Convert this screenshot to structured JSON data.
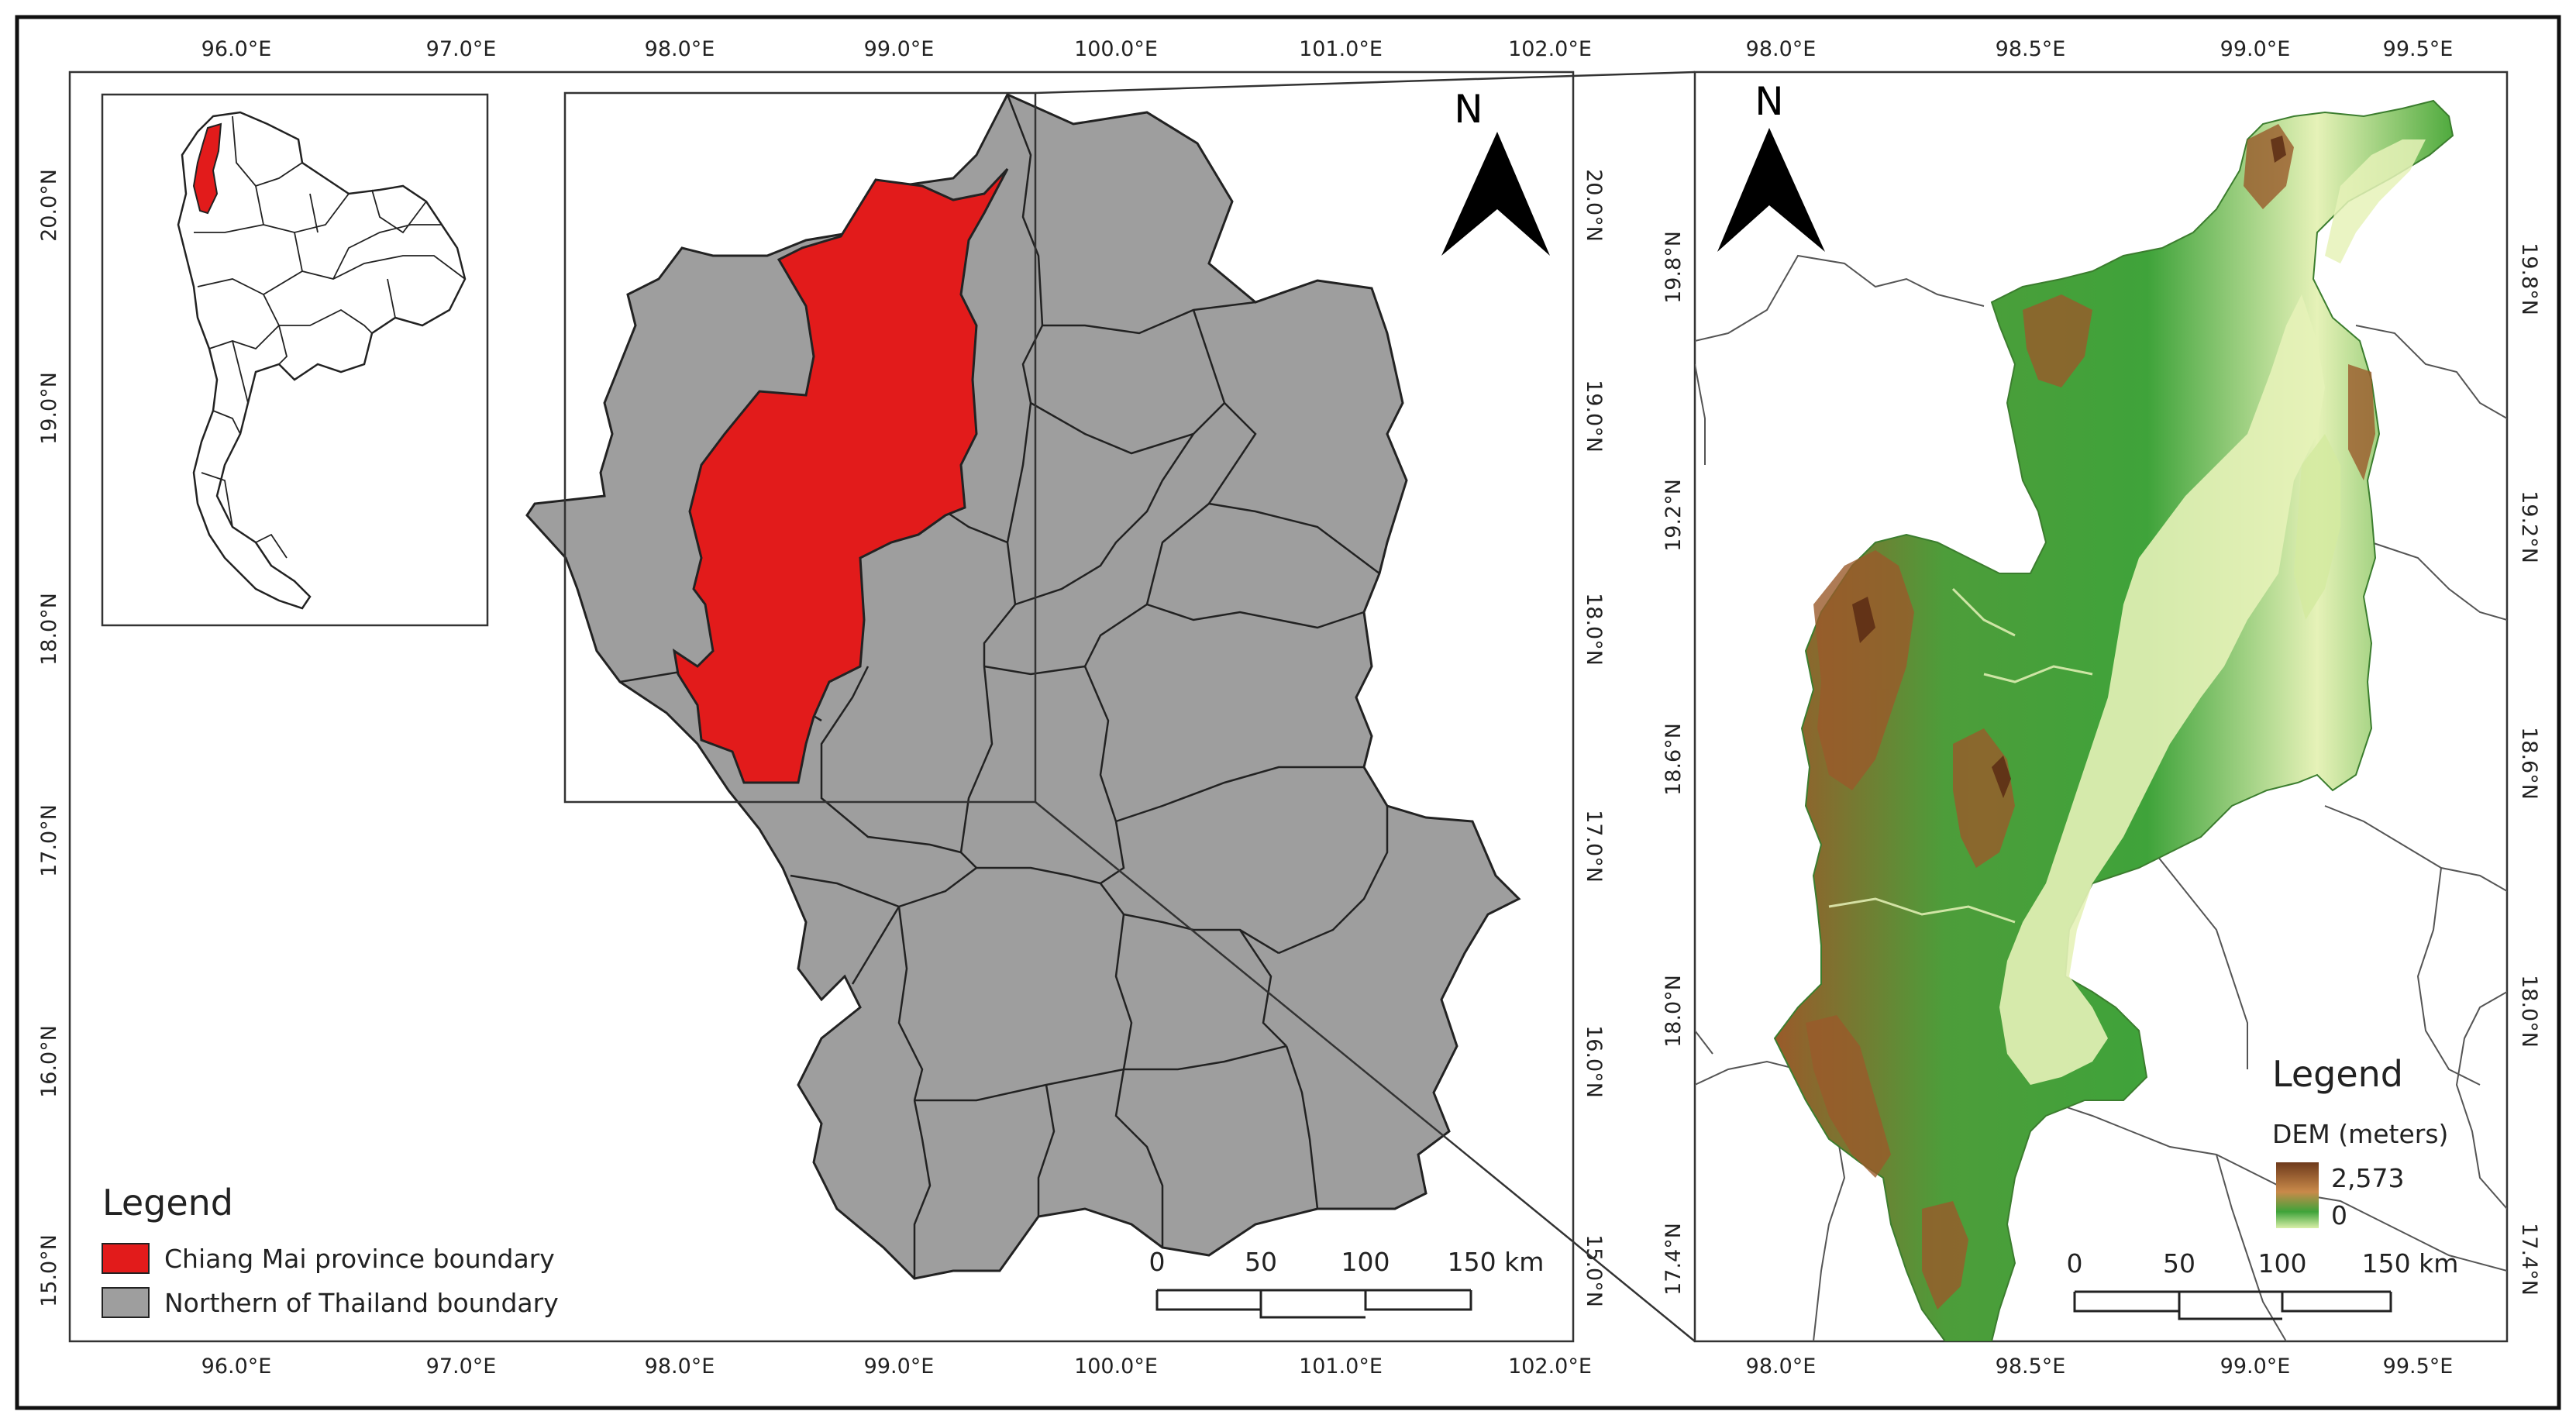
{
  "colors": {
    "chiang_mai": "#e21b1b",
    "northern": "#9e9e9e",
    "boundary": "#222222",
    "dem_low": "#d9efa8",
    "dem_mid": "#3fa33a",
    "dem_high": "#8a4a22"
  },
  "left_map": {
    "x_ticks": [
      "96.0°E",
      "97.0°E",
      "98.0°E",
      "99.0°E",
      "100.0°E",
      "101.0°E",
      "102.0°E"
    ],
    "y_ticks_left": [
      "20.0°N",
      "19.0°N",
      "18.0°N",
      "17.0°N",
      "16.0°N",
      "15.0°N"
    ],
    "y_ticks_right": [
      "20.0°N",
      "19.0°N",
      "18.0°N",
      "17.0°N",
      "16.0°N",
      "15.0°N"
    ],
    "north_label": "N",
    "legend": {
      "title": "Legend",
      "items": [
        {
          "label": "Chiang Mai province boundary",
          "color": "#e21b1b"
        },
        {
          "label": "Northern of Thailand boundary",
          "color": "#9e9e9e"
        }
      ]
    },
    "scale_labels": [
      "0",
      "50",
      "100",
      "150 km"
    ]
  },
  "right_map": {
    "x_ticks": [
      "98.0°E",
      "98.5°E",
      "99.0°E",
      "99.5°E"
    ],
    "y_ticks_left": [
      "19.8°N",
      "19.2°N",
      "18.6°N",
      "18.0°N",
      "17.4°N"
    ],
    "y_ticks_right": [
      "19.8°N",
      "19.2°N",
      "18.6°N",
      "18.0°N",
      "17.4°N"
    ],
    "north_label": "N",
    "legend": {
      "title": "Legend",
      "subtitle": "DEM (meters)",
      "max_label": "2,573",
      "min_label": "0"
    },
    "scale_labels": [
      "0",
      "50",
      "100",
      "150 km"
    ]
  }
}
